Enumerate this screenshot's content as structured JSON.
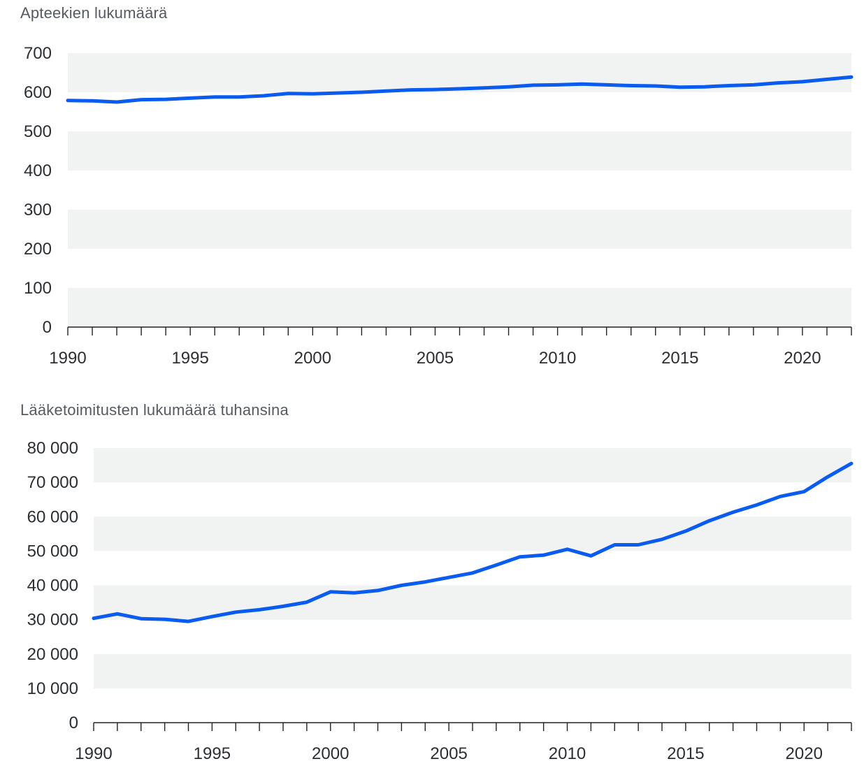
{
  "colors": {
    "line": "#0a5cf0",
    "band": "#f1f2f2",
    "axis": "#222222"
  },
  "chart_data": [
    {
      "type": "line",
      "title": "Apteekien lukumäärä",
      "xlabel": "",
      "ylabel": "",
      "xlim": [
        1990,
        2022
      ],
      "ylim": [
        0,
        700
      ],
      "y_ticks": [
        0,
        100,
        200,
        300,
        400,
        500,
        600,
        700
      ],
      "y_tick_labels": [
        "0",
        "100",
        "200",
        "300",
        "400",
        "500",
        "600",
        "700"
      ],
      "x_tick_labels": [
        "1990",
        "1995",
        "2000",
        "2005",
        "2010",
        "2015",
        "2020"
      ],
      "x_tick_values": [
        1990,
        1995,
        2000,
        2005,
        2010,
        2015,
        2020
      ],
      "grid": "alternating horizontal bands",
      "legend": "none",
      "x": [
        1990,
        1991,
        1992,
        1993,
        1994,
        1995,
        1996,
        1997,
        1998,
        1999,
        2000,
        2001,
        2002,
        2003,
        2004,
        2005,
        2006,
        2007,
        2008,
        2009,
        2010,
        2011,
        2012,
        2013,
        2014,
        2015,
        2016,
        2017,
        2018,
        2019,
        2020,
        2021,
        2022
      ],
      "series": [
        {
          "values": [
            579,
            578,
            575,
            581,
            582,
            585,
            588,
            588,
            591,
            597,
            596,
            598,
            600,
            603,
            606,
            607,
            609,
            611,
            614,
            618,
            619,
            621,
            619,
            617,
            616,
            613,
            614,
            617,
            619,
            624,
            627,
            633,
            639
          ]
        }
      ]
    },
    {
      "type": "line",
      "title": "Lääketoimitusten lukumäärä tuhansina",
      "xlabel": "",
      "ylabel": "",
      "xlim": [
        1990,
        2022
      ],
      "ylim": [
        0,
        80000
      ],
      "y_ticks": [
        0,
        10000,
        20000,
        30000,
        40000,
        50000,
        60000,
        70000,
        80000
      ],
      "y_tick_labels": [
        "0",
        "10 000",
        "20 000",
        "30 000",
        "40 000",
        "50 000",
        "60 000",
        "70 000",
        "80 000"
      ],
      "x_tick_labels": [
        "1990",
        "1995",
        "2000",
        "2005",
        "2010",
        "2015",
        "2020"
      ],
      "x_tick_values": [
        1990,
        1995,
        2000,
        2005,
        2010,
        2015,
        2020
      ],
      "grid": "alternating horizontal bands",
      "legend": "none",
      "x": [
        1990,
        1991,
        1992,
        1993,
        1994,
        1995,
        1996,
        1997,
        1998,
        1999,
        2000,
        2001,
        2002,
        2003,
        2004,
        2005,
        2006,
        2007,
        2008,
        2009,
        2010,
        2011,
        2012,
        2013,
        2014,
        2015,
        2016,
        2017,
        2018,
        2019,
        2020,
        2021,
        2022
      ],
      "series": [
        {
          "values": [
            30400,
            31700,
            30300,
            30100,
            29500,
            30900,
            32200,
            32900,
            33900,
            35100,
            38100,
            37800,
            38500,
            40000,
            41000,
            42300,
            43600,
            45900,
            48300,
            48800,
            50500,
            48600,
            51800,
            51800,
            53400,
            55800,
            58800,
            61300,
            63400,
            65900,
            67300,
            71600,
            75500
          ]
        }
      ]
    }
  ]
}
